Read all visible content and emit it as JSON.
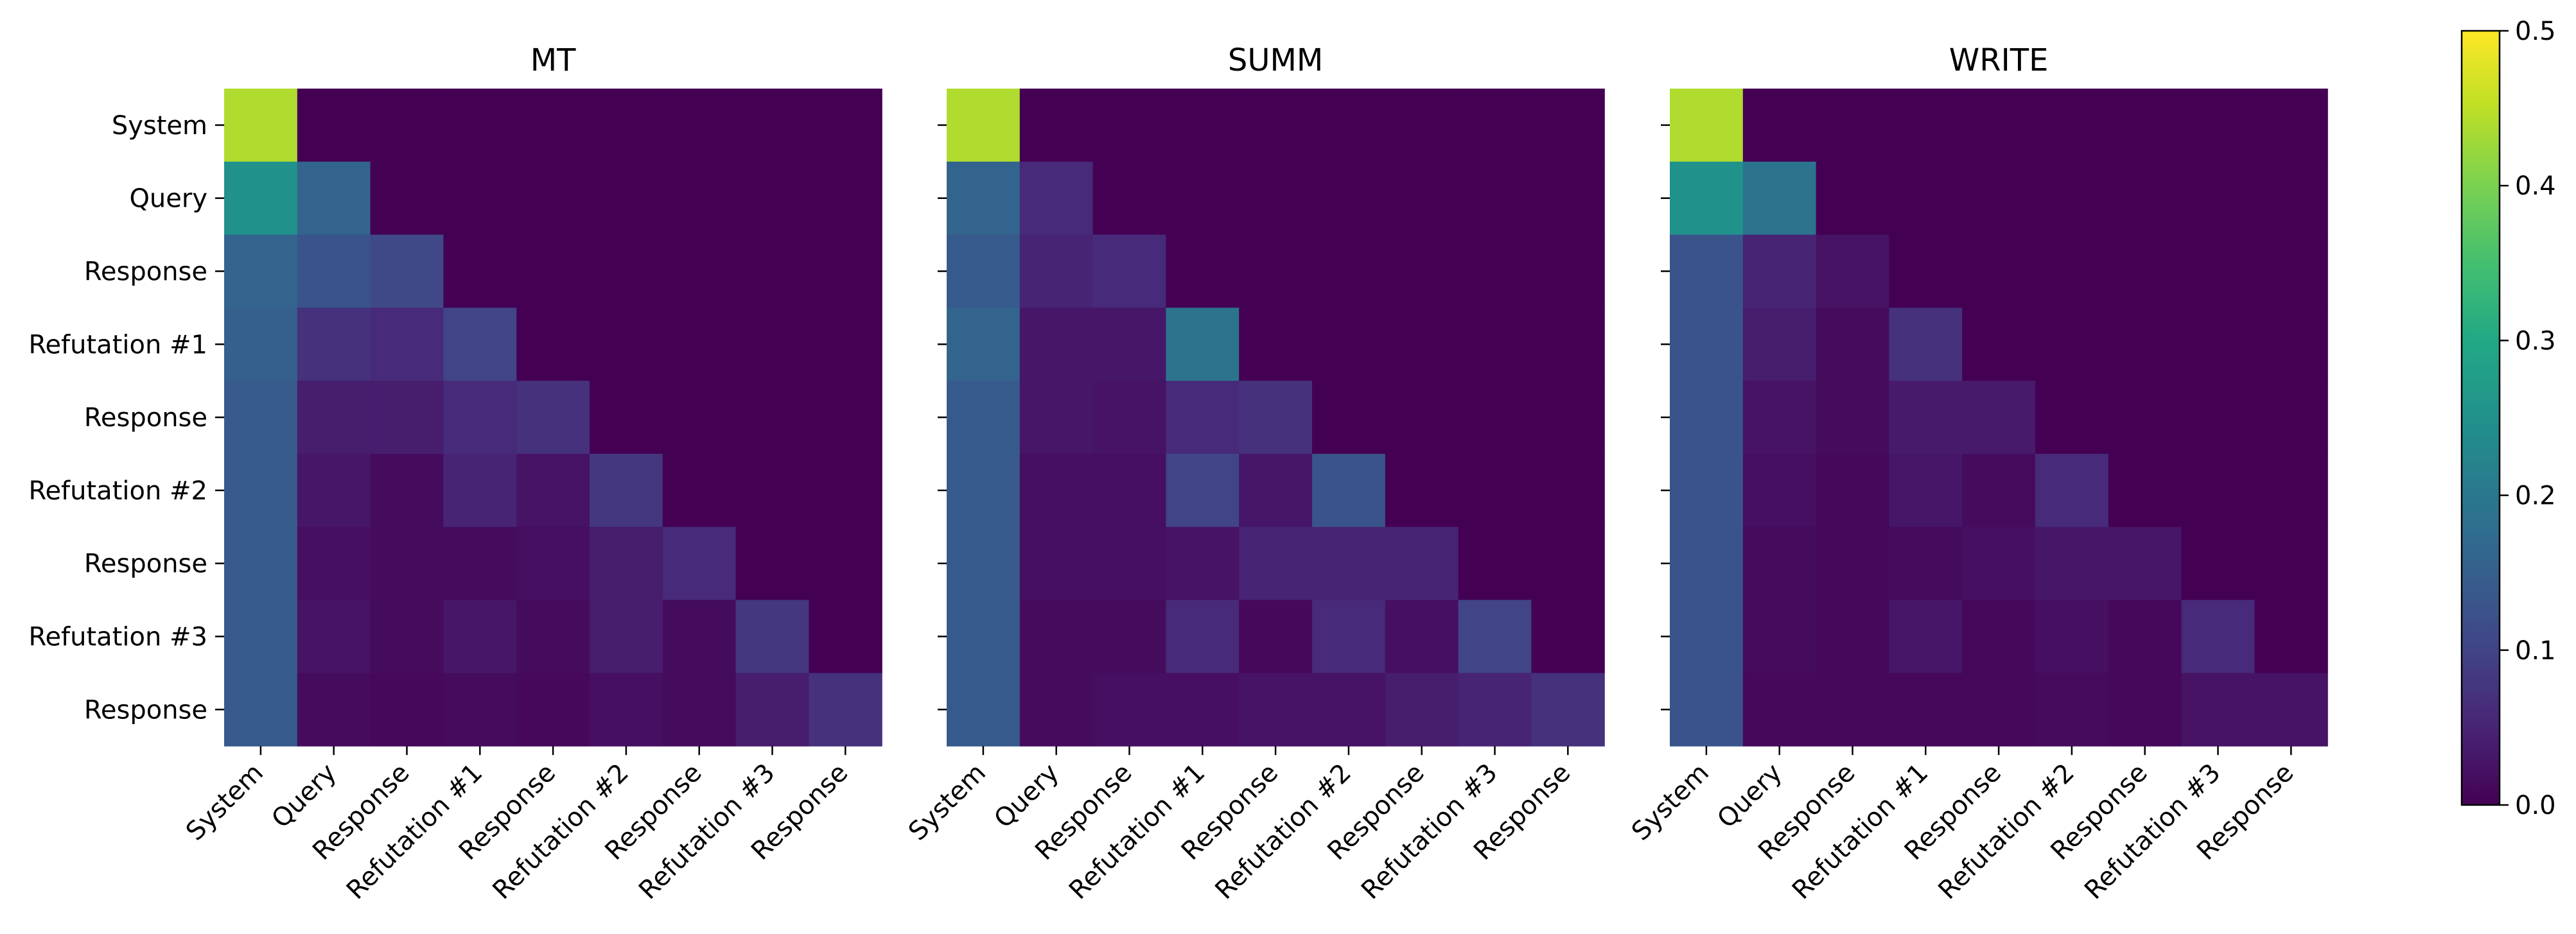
{
  "chart_data": {
    "type": "heatmap",
    "layout": "three lower-triangular heatmaps sharing row labels, with one shared colorbar on the right",
    "row_labels": [
      "System",
      "Query",
      "Response",
      "Refutation #1",
      "Response",
      "Refutation #2",
      "Response",
      "Refutation #3",
      "Response"
    ],
    "col_labels": [
      "System",
      "Query",
      "Response",
      "Refutation #1",
      "Response",
      "Refutation #2",
      "Response",
      "Refutation #3",
      "Response"
    ],
    "colormap": "viridis",
    "colorbar": {
      "range": [
        0.0,
        0.5
      ],
      "ticks": [
        0.0,
        0.1,
        0.2,
        0.3,
        0.4,
        0.5
      ],
      "tick_labels": [
        "0.0",
        "0.1",
        "0.2",
        "0.3",
        "0.4",
        "0.5"
      ]
    },
    "panels": [
      {
        "title": "MT",
        "values": [
          [
            0.44,
            0,
            0,
            0,
            0,
            0,
            0,
            0,
            0
          ],
          [
            0.25,
            0.16,
            0,
            0,
            0,
            0,
            0,
            0,
            0
          ],
          [
            0.16,
            0.13,
            0.11,
            0,
            0,
            0,
            0,
            0,
            0
          ],
          [
            0.15,
            0.07,
            0.06,
            0.1,
            0,
            0,
            0,
            0,
            0
          ],
          [
            0.14,
            0.04,
            0.04,
            0.06,
            0.07,
            0,
            0,
            0,
            0
          ],
          [
            0.14,
            0.03,
            0.015,
            0.05,
            0.025,
            0.08,
            0,
            0,
            0
          ],
          [
            0.14,
            0.02,
            0.015,
            0.015,
            0.02,
            0.04,
            0.06,
            0,
            0
          ],
          [
            0.14,
            0.025,
            0.015,
            0.03,
            0.015,
            0.04,
            0.015,
            0.08,
            0
          ],
          [
            0.14,
            0.015,
            0.01,
            0.015,
            0.01,
            0.02,
            0.015,
            0.04,
            0.07
          ]
        ]
      },
      {
        "title": "SUMM",
        "values": [
          [
            0.44,
            0,
            0,
            0,
            0,
            0,
            0,
            0,
            0
          ],
          [
            0.16,
            0.06,
            0,
            0,
            0,
            0,
            0,
            0,
            0
          ],
          [
            0.14,
            0.05,
            0.06,
            0,
            0,
            0,
            0,
            0,
            0
          ],
          [
            0.16,
            0.03,
            0.03,
            0.19,
            0,
            0,
            0,
            0,
            0
          ],
          [
            0.14,
            0.03,
            0.025,
            0.06,
            0.07,
            0,
            0,
            0,
            0
          ],
          [
            0.14,
            0.02,
            0.02,
            0.1,
            0.03,
            0.13,
            0,
            0,
            0
          ],
          [
            0.14,
            0.02,
            0.02,
            0.025,
            0.05,
            0.05,
            0.05,
            0,
            0
          ],
          [
            0.14,
            0.015,
            0.015,
            0.06,
            0.01,
            0.06,
            0.02,
            0.1,
            0
          ],
          [
            0.14,
            0.015,
            0.02,
            0.02,
            0.025,
            0.025,
            0.04,
            0.05,
            0.07
          ]
        ]
      },
      {
        "title": "WRITE",
        "values": [
          [
            0.44,
            0,
            0,
            0,
            0,
            0,
            0,
            0,
            0
          ],
          [
            0.25,
            0.19,
            0,
            0,
            0,
            0,
            0,
            0,
            0
          ],
          [
            0.13,
            0.05,
            0.025,
            0,
            0,
            0,
            0,
            0,
            0
          ],
          [
            0.13,
            0.04,
            0.015,
            0.07,
            0,
            0,
            0,
            0,
            0
          ],
          [
            0.13,
            0.025,
            0.015,
            0.035,
            0.035,
            0,
            0,
            0,
            0
          ],
          [
            0.13,
            0.02,
            0.01,
            0.03,
            0.015,
            0.06,
            0,
            0,
            0
          ],
          [
            0.13,
            0.015,
            0.01,
            0.015,
            0.02,
            0.03,
            0.03,
            0,
            0
          ],
          [
            0.13,
            0.015,
            0.01,
            0.03,
            0.01,
            0.02,
            0.01,
            0.06,
            0
          ],
          [
            0.13,
            0.01,
            0.01,
            0.01,
            0.01,
            0.015,
            0.01,
            0.025,
            0.025
          ]
        ]
      }
    ]
  }
}
